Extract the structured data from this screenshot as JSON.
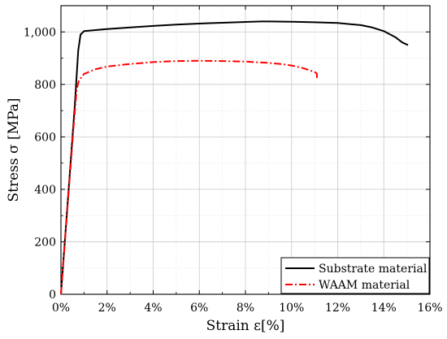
{
  "chart_data": {
    "type": "line",
    "title": "",
    "xlabel": "Strain ε[%]",
    "ylabel": "Stress σ [MPa]",
    "xlim": [
      0,
      16
    ],
    "ylim": [
      0,
      1100
    ],
    "x_ticks": [
      0,
      2,
      4,
      6,
      8,
      10,
      12,
      14,
      16
    ],
    "x_tick_labels": [
      "0%",
      "2%",
      "4%",
      "6%",
      "8%",
      "10%",
      "12%",
      "14%",
      "16%"
    ],
    "y_ticks": [
      0,
      200,
      400,
      600,
      800,
      1000
    ],
    "y_tick_labels": [
      "0",
      "200",
      "400",
      "600",
      "800",
      "1,000"
    ],
    "grid": true,
    "legend_position": "bottom-right",
    "series": [
      {
        "name": "Substrate material",
        "color": "#000000",
        "dash": "solid",
        "x": [
          0,
          0.3,
          0.6,
          0.75,
          0.85,
          1.0,
          1.5,
          2.0,
          3.0,
          4.0,
          5.0,
          6.0,
          7.0,
          8.0,
          8.7,
          9.0,
          10.0,
          11.0,
          12.0,
          12.5,
          13.0,
          13.5,
          14.0,
          14.5,
          14.8,
          15.05
        ],
        "y": [
          0,
          360,
          720,
          930,
          990,
          1003,
          1007,
          1011,
          1017,
          1023,
          1028,
          1032,
          1035,
          1038,
          1040,
          1040,
          1039,
          1037,
          1034,
          1030,
          1026,
          1017,
          1003,
          980,
          960,
          950
        ]
      },
      {
        "name": "WAAM material",
        "color": "#ff0000",
        "dash": "dashdot",
        "x": [
          0,
          0.3,
          0.55,
          0.68,
          0.78,
          1.0,
          1.5,
          2.0,
          3.0,
          4.0,
          5.0,
          6.0,
          7.0,
          8.0,
          9.0,
          9.5,
          10.0,
          10.5,
          10.9,
          11.05,
          11.1,
          11.1
        ],
        "y": [
          0,
          350,
          640,
          780,
          815,
          840,
          858,
          868,
          878,
          885,
          889,
          890,
          889,
          887,
          882,
          878,
          872,
          862,
          850,
          845,
          840,
          822
        ]
      }
    ]
  }
}
